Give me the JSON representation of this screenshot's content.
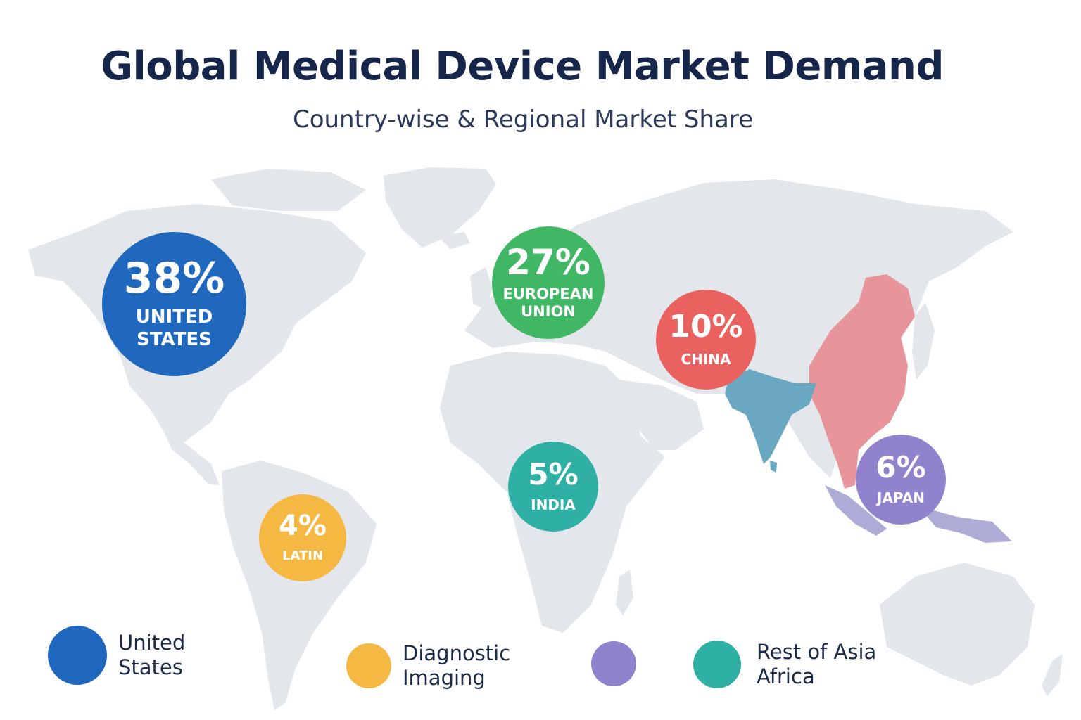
{
  "title": "Global Medical Device Market Demand",
  "subtitle": "Country-wise & Regional Market Share",
  "colors": {
    "land": "#e3e6ea",
    "united_states": "#1f68bd",
    "european_union": "#3fb765",
    "china": "#e9625f",
    "india": "#2fb0a5",
    "japan": "#9182ce",
    "latin": "#f5b943",
    "india_region": "#6aa8c2",
    "china_region": "#e7959a",
    "southeast_asia_region": "#aeacd6"
  },
  "chart_data": {
    "type": "bubble-map",
    "title": "Global Medical Device Market Demand",
    "subtitle": "Country-wise & Regional Market Share",
    "unit": "%",
    "points": [
      {
        "label": "UNITED STATES",
        "value": 38,
        "value_label": "38%",
        "color": "#1f68bd"
      },
      {
        "label": "EUROPEAN UNION",
        "value": 27,
        "value_label": "27%",
        "color": "#3fb765"
      },
      {
        "label": "CHINA",
        "value": 10,
        "value_label": "10%",
        "color": "#e9625f"
      },
      {
        "label": "INDIA",
        "value": 5,
        "value_label": "5%",
        "color": "#2fb0a5"
      },
      {
        "label": "JAPAN",
        "value": 6,
        "value_label": "6%",
        "color": "#9182ce"
      },
      {
        "label": "LATIN",
        "value": 4,
        "value_label": "4%",
        "color": "#f5b943"
      }
    ],
    "legend": [
      {
        "label": "United States",
        "color": "#1f68bd"
      },
      {
        "label": "Diagnostic Imaging",
        "color": "#f5b943"
      },
      {
        "label": "",
        "color": "#9182ce"
      },
      {
        "label": "Rest of Asia Africa",
        "color": "#2fb0a5"
      }
    ]
  }
}
